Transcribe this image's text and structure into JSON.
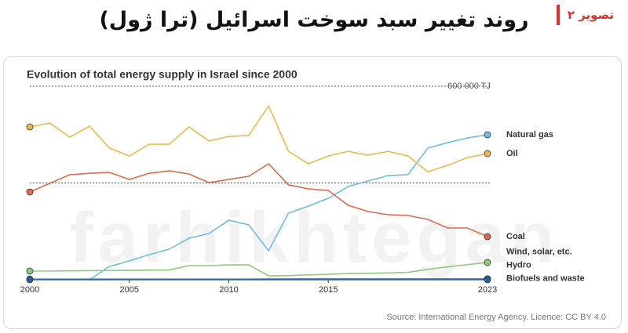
{
  "header": {
    "title": "روند تغییر سبد سوخت اسرائیل (ترا ژول)",
    "badge": "تصویر ۲"
  },
  "watermark": "farhikhtegan",
  "chart_data": {
    "type": "line",
    "title": "Evolution of total energy supply in Israel since 2000",
    "source": "Source: International Energy Agency. Licence: CC BY 4.0",
    "x": [
      2000,
      2001,
      2002,
      2003,
      2004,
      2005,
      2006,
      2007,
      2008,
      2009,
      2010,
      2011,
      2012,
      2013,
      2014,
      2015,
      2016,
      2017,
      2018,
      2019,
      2020,
      2021,
      2022,
      2023
    ],
    "xlim": [
      2000,
      2023
    ],
    "xticks": [
      2000,
      2005,
      2010,
      2015,
      2023
    ],
    "ylim": [
      0,
      600000
    ],
    "yticks": [
      {
        "value": 300000,
        "label": null
      },
      {
        "value": 600000,
        "label": "600 000 TJ"
      }
    ],
    "grid": true,
    "series": [
      {
        "name": "Natural gas",
        "color": "#6dbde6",
        "values": [
          null,
          null,
          null,
          0,
          41000,
          58300,
          77700,
          94700,
          128700,
          143300,
          184600,
          170000,
          89900,
          206500,
          228300,
          252600,
          289000,
          306000,
          323000,
          325500,
          408000,
          425000,
          439600,
          449400
        ]
      },
      {
        "name": "Oil",
        "color": "#f1b84b",
        "values": [
          473700,
          485800,
          442000,
          476000,
          408000,
          383800,
          420000,
          420000,
          473700,
          430000,
          444500,
          447000,
          539000,
          398000,
          359500,
          383800,
          398000,
          386000,
          398000,
          383800,
          335000,
          354600,
          379000,
          391000
        ]
      },
      {
        "name": "Coal",
        "color": "#e0694a",
        "values": [
          272000,
          298800,
          325500,
          330000,
          332800,
          311000,
          330000,
          337600,
          328000,
          301000,
          311000,
          320600,
          359500,
          294000,
          281800,
          277000,
          230800,
          211300,
          201600,
          199200,
          187000,
          160300,
          160300,
          133600
        ]
      },
      {
        "name": "Wind, solar, etc.",
        "color": "#8fc97f",
        "values": [
          26700,
          27000,
          27500,
          28000,
          28500,
          29000,
          29500,
          30000,
          43700,
          43700,
          46000,
          46000,
          12100,
          13000,
          15000,
          17000,
          19000,
          20000,
          21000,
          23000,
          32000,
          40000,
          47000,
          53400
        ]
      },
      {
        "name": "Biofuels and waste",
        "color": "#3a9e8a",
        "values": [
          2000,
          2000,
          2000,
          2000,
          2000,
          2000,
          2000,
          2000,
          2000,
          2000,
          2000,
          2000,
          2500,
          2500,
          3000,
          3000,
          3000,
          3000,
          3000,
          3000,
          3000,
          3000,
          3000,
          3000
        ]
      },
      {
        "name": "Hydro",
        "color": "#2b5fa6",
        "values": [
          0,
          0,
          0,
          0,
          0,
          0,
          0,
          0,
          0,
          0,
          0,
          0,
          0,
          0,
          0,
          0,
          0,
          0,
          0,
          0,
          0,
          0,
          0,
          0
        ]
      }
    ]
  }
}
